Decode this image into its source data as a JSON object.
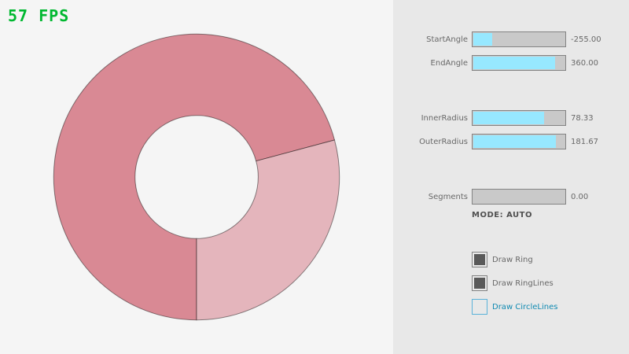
{
  "fps": {
    "label": "57 FPS",
    "color": "#00b830"
  },
  "ring": {
    "fill_light": "#e4b5bc",
    "fill_dark": "#d98994",
    "start_angle": "-255.00",
    "end_angle": "360.00",
    "inner_radius": "78.33",
    "outer_radius": "181.67"
  },
  "panel": {
    "sliders": [
      {
        "label": "StartAngle",
        "value": "-255.00",
        "fill_pct": 21.7
      },
      {
        "label": "EndAngle",
        "value": "360.00",
        "fill_pct": 90
      },
      {
        "label": "InnerRadius",
        "value": "78.33",
        "fill_pct": 78.3
      },
      {
        "label": "OuterRadius",
        "value": "181.67",
        "fill_pct": 90.8
      },
      {
        "label": "Segments",
        "value": "0.00",
        "fill_pct": 0
      }
    ],
    "mode_text": "MODE: AUTO",
    "checkboxes": [
      {
        "label": "Draw Ring",
        "checked": true
      },
      {
        "label": "Draw RingLines",
        "checked": true
      },
      {
        "label": "Draw CircleLines",
        "checked": false
      }
    ]
  }
}
